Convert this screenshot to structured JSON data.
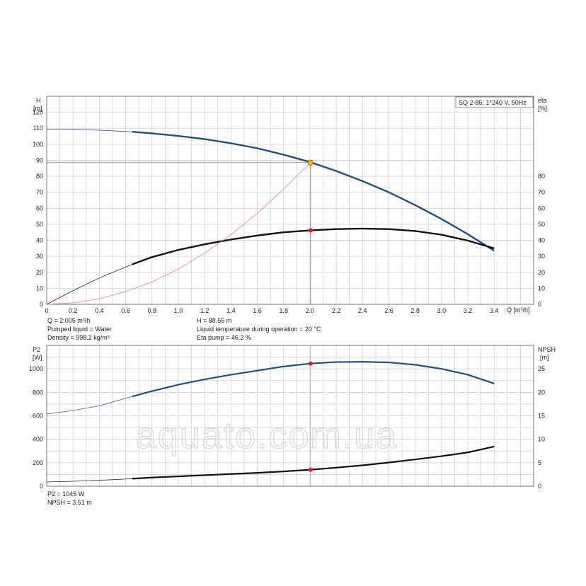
{
  "chart_data": [
    {
      "type": "line",
      "x_unit": "Q [m³/h]",
      "x_ticks": [
        "0",
        "0.2",
        "0.4",
        "0.6",
        "0.8",
        "1.0",
        "1.2",
        "1.4",
        "1.6",
        "1.8",
        "2.0",
        "2.2",
        "2.4",
        "2.6",
        "2.8",
        "3.0",
        "3.2",
        "3.4"
      ],
      "xlim": [
        0,
        3.7
      ],
      "left_axis": {
        "label": "H",
        "unit": "[m]",
        "ticks": [
          "0",
          "10",
          "20",
          "30",
          "40",
          "50",
          "60",
          "70",
          "80",
          "90",
          "100",
          "110",
          "120"
        ],
        "ylim": [
          0,
          130
        ]
      },
      "right_axis": {
        "label": "eta",
        "unit": "[%]",
        "ticks": [
          "0",
          "10",
          "20",
          "30",
          "40",
          "50",
          "60",
          "70",
          "80"
        ],
        "ylim": [
          0,
          130
        ]
      },
      "legend": "SQ 2-85, 1*240 V, 50Hz",
      "legend_position": "top-right",
      "grid": true,
      "series": [
        {
          "axis": "left",
          "color": "#1f4e8c",
          "x": [
            0,
            0.2,
            0.4,
            0.65,
            0.8,
            1.0,
            1.2,
            1.4,
            1.6,
            1.8,
            2.0,
            2.2,
            2.4,
            2.6,
            2.8,
            3.0,
            3.2,
            3.4
          ],
          "y": [
            109.5,
            109.3,
            108.8,
            107.8,
            106.8,
            105.2,
            103.2,
            100.6,
            97.5,
            93.5,
            88.9,
            83.3,
            77.0,
            70.0,
            62.0,
            53.3,
            43.8,
            33.5
          ]
        },
        {
          "axis": "right",
          "color": "#111111",
          "x": [
            0,
            0.2,
            0.4,
            0.65,
            0.8,
            1.0,
            1.2,
            1.4,
            1.6,
            1.8,
            2.0,
            2.2,
            2.4,
            2.6,
            2.8,
            3.0,
            3.2,
            3.4
          ],
          "y": [
            0,
            8.5,
            16.5,
            25,
            29.5,
            34,
            37.5,
            40.5,
            43,
            45,
            46.2,
            47,
            47.3,
            47,
            45.8,
            43.5,
            39.8,
            35
          ]
        },
        {
          "axis": "left",
          "color": "#f08080",
          "x": [
            0,
            0.2,
            0.4,
            0.6,
            0.8,
            1.0,
            1.2,
            1.4,
            1.6,
            1.8,
            2.005
          ],
          "y": [
            0,
            0.9,
            3.5,
            8,
            14,
            22,
            32,
            43.5,
            56.8,
            72,
            88.55
          ]
        }
      ],
      "operating_point": {
        "x": 2.005,
        "y": 88.55,
        "eta": 46.2
      }
    },
    {
      "type": "line",
      "x_ticks": [
        "0",
        "0.2",
        "0.4",
        "0.6",
        "0.8",
        "1.0",
        "1.2",
        "1.4",
        "1.6",
        "1.8",
        "2.0",
        "2.2",
        "2.4",
        "2.6",
        "2.8",
        "3.0",
        "3.2",
        "3.4"
      ],
      "xlim": [
        0,
        3.7
      ],
      "left_axis": {
        "label": "P2",
        "unit": "[W]",
        "ticks": [
          "0",
          "200",
          "400",
          "600",
          "800",
          "1000"
        ],
        "ylim": [
          0,
          1200
        ]
      },
      "right_axis": {
        "label": "NPSH",
        "unit": "[m]",
        "ticks": [
          "0",
          "5",
          "10",
          "15",
          "20",
          "25"
        ],
        "ylim": [
          0,
          30
        ]
      },
      "grid": true,
      "series": [
        {
          "axis": "left",
          "color": "#1f4e8c",
          "x": [
            0,
            0.2,
            0.4,
            0.65,
            0.8,
            1.0,
            1.2,
            1.4,
            1.6,
            1.8,
            2.0,
            2.2,
            2.4,
            2.6,
            2.8,
            3.0,
            3.2,
            3.4
          ],
          "y": [
            615,
            645,
            685,
            765,
            810,
            865,
            910,
            950,
            985,
            1020,
            1045,
            1058,
            1060,
            1055,
            1035,
            1000,
            950,
            875
          ]
        },
        {
          "axis": "right",
          "color": "#111111",
          "x": [
            0,
            0.2,
            0.4,
            0.65,
            0.8,
            1.0,
            1.2,
            1.4,
            1.6,
            1.8,
            2.0,
            2.2,
            2.4,
            2.6,
            2.8,
            3.0,
            3.2,
            3.4
          ],
          "y": [
            0.9,
            1.05,
            1.25,
            1.6,
            1.85,
            2.1,
            2.35,
            2.6,
            2.85,
            3.15,
            3.51,
            3.95,
            4.45,
            5.05,
            5.7,
            6.4,
            7.2,
            8.45
          ]
        }
      ],
      "operating_point": {
        "x": 2.005,
        "p2": 1045,
        "npsh": 3.51
      }
    }
  ],
  "info_top": {
    "q": "Q = 2.005 m³/h",
    "liquid": "Pumped liquid = Water",
    "density": "Density = 998.2 kg/m³",
    "h": "H = 88.55 m",
    "temp": "Liquid temperature during operation = 20 °C",
    "eta": "Eta pump = 46.2 %"
  },
  "info_bottom": {
    "p2": "P2 = 1045 W",
    "npsh": "NPSH = 3.51 m"
  },
  "watermark": "aquato.com.ua"
}
